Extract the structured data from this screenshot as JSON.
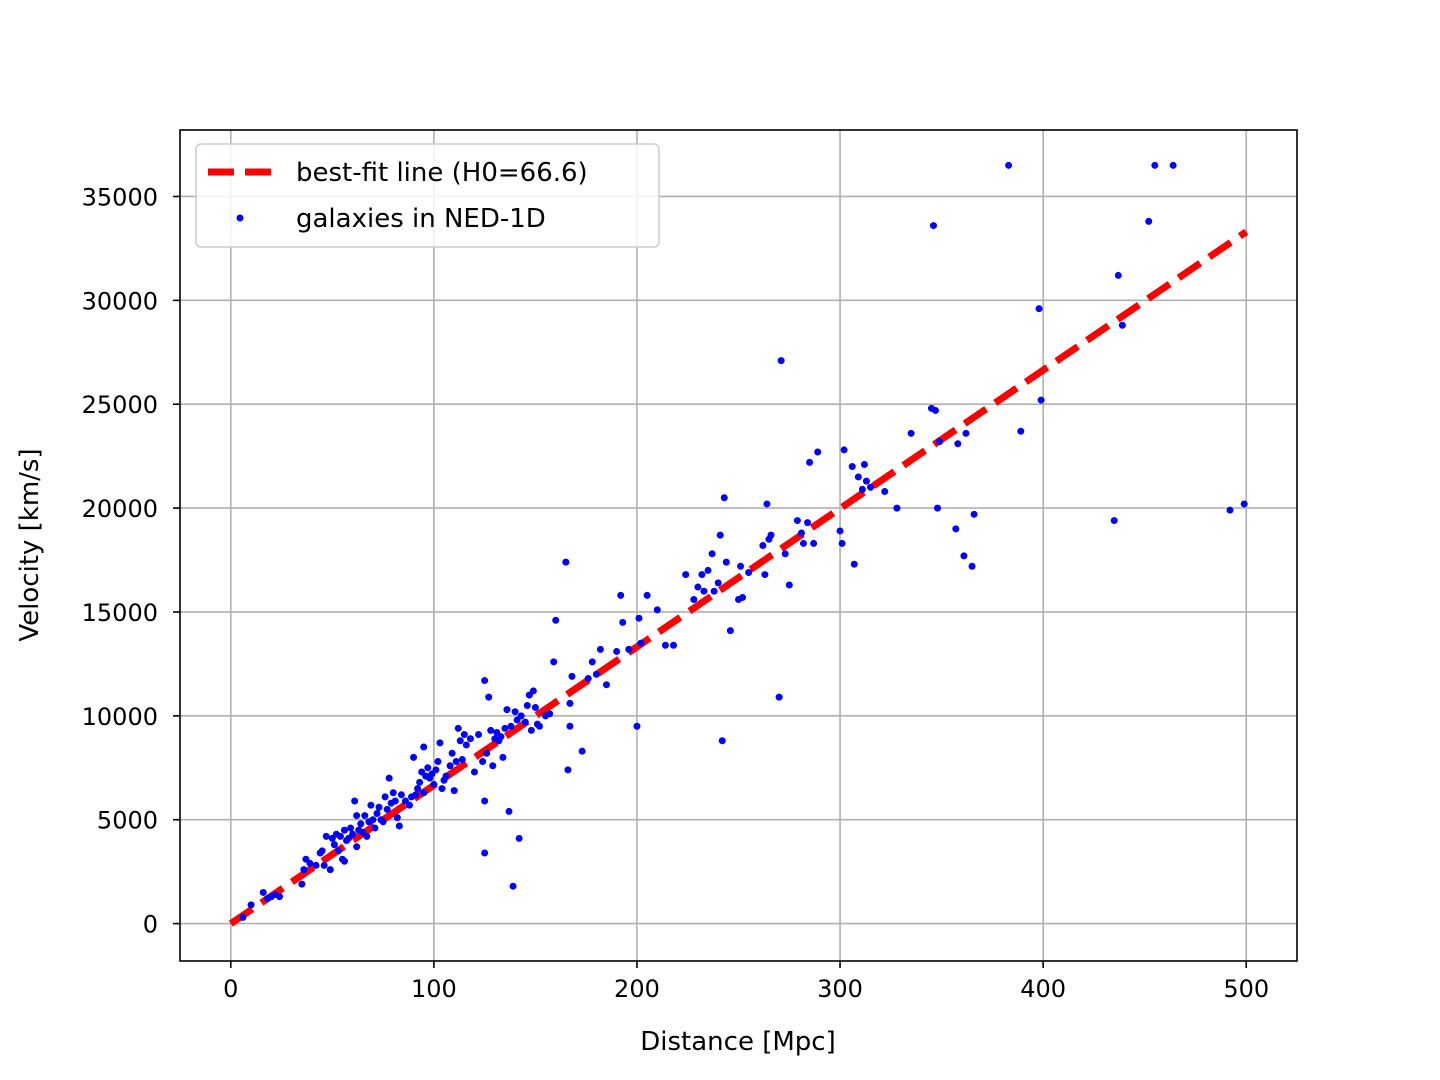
{
  "chart_data": {
    "type": "scatter",
    "title": "",
    "xlabel": "Distance [Mpc]",
    "ylabel": "Velocity [km/s]",
    "xlim": [
      -25,
      525
    ],
    "ylim": [
      -1800,
      38200
    ],
    "xticks": [
      0,
      100,
      200,
      300,
      400,
      500
    ],
    "yticks": [
      0,
      5000,
      10000,
      15000,
      20000,
      25000,
      30000,
      35000
    ],
    "grid": true,
    "legend_position": "top-left",
    "colors": {
      "fit_line": "#ff0000",
      "points": "#0000ff",
      "grid": "#b0b0b0"
    },
    "series": [
      {
        "name": "best-fit line (H0=66.6)",
        "kind": "line",
        "style": "dashed",
        "x": [
          0,
          500
        ],
        "y": [
          0,
          33300
        ]
      },
      {
        "name": "galaxies in NED-1D",
        "kind": "scatter",
        "points": [
          [
            6,
            300
          ],
          [
            10,
            900
          ],
          [
            16,
            1500
          ],
          [
            18,
            1200
          ],
          [
            20,
            1300
          ],
          [
            22,
            1400
          ],
          [
            24,
            1300
          ],
          [
            35,
            1900
          ],
          [
            36,
            2600
          ],
          [
            37,
            3100
          ],
          [
            39,
            2900
          ],
          [
            42,
            2800
          ],
          [
            44,
            3400
          ],
          [
            45,
            3500
          ],
          [
            46,
            2800
          ],
          [
            47,
            4200
          ],
          [
            49,
            2600
          ],
          [
            50,
            4100
          ],
          [
            51,
            3800
          ],
          [
            52,
            4300
          ],
          [
            53,
            3500
          ],
          [
            54,
            4200
          ],
          [
            55,
            3100
          ],
          [
            56,
            3000
          ],
          [
            56,
            4500
          ],
          [
            57,
            4000
          ],
          [
            58,
            4100
          ],
          [
            59,
            4600
          ],
          [
            60,
            4300
          ],
          [
            61,
            5900
          ],
          [
            62,
            3700
          ],
          [
            62,
            5200
          ],
          [
            63,
            4500
          ],
          [
            64,
            4800
          ],
          [
            65,
            4400
          ],
          [
            66,
            5200
          ],
          [
            67,
            4200
          ],
          [
            68,
            4900
          ],
          [
            69,
            5700
          ],
          [
            70,
            5000
          ],
          [
            71,
            4600
          ],
          [
            72,
            5300
          ],
          [
            73,
            5600
          ],
          [
            74,
            5000
          ],
          [
            75,
            4900
          ],
          [
            76,
            6100
          ],
          [
            77,
            5500
          ],
          [
            78,
            7000
          ],
          [
            79,
            5800
          ],
          [
            80,
            6300
          ],
          [
            81,
            5900
          ],
          [
            82,
            5100
          ],
          [
            83,
            4700
          ],
          [
            84,
            6200
          ],
          [
            86,
            5900
          ],
          [
            88,
            5700
          ],
          [
            89,
            6100
          ],
          [
            90,
            8000
          ],
          [
            91,
            6200
          ],
          [
            92,
            6500
          ],
          [
            93,
            6800
          ],
          [
            94,
            7300
          ],
          [
            95,
            8500
          ],
          [
            95,
            6300
          ],
          [
            96,
            7100
          ],
          [
            97,
            7500
          ],
          [
            98,
            7000
          ],
          [
            99,
            7200
          ],
          [
            100,
            6700
          ],
          [
            101,
            7400
          ],
          [
            102,
            7800
          ],
          [
            103,
            8700
          ],
          [
            104,
            6500
          ],
          [
            105,
            6900
          ],
          [
            106,
            7100
          ],
          [
            108,
            7600
          ],
          [
            109,
            8200
          ],
          [
            110,
            6400
          ],
          [
            111,
            7800
          ],
          [
            112,
            9400
          ],
          [
            113,
            8800
          ],
          [
            114,
            7900
          ],
          [
            115,
            9100
          ],
          [
            116,
            8600
          ],
          [
            118,
            8900
          ],
          [
            120,
            7300
          ],
          [
            122,
            9100
          ],
          [
            124,
            7800
          ],
          [
            125,
            11700
          ],
          [
            125,
            5900
          ],
          [
            125,
            3400
          ],
          [
            126,
            8200
          ],
          [
            127,
            10900
          ],
          [
            128,
            9300
          ],
          [
            129,
            7600
          ],
          [
            130,
            8900
          ],
          [
            131,
            9200
          ],
          [
            132,
            8800
          ],
          [
            133,
            9000
          ],
          [
            134,
            8000
          ],
          [
            135,
            9400
          ],
          [
            136,
            10300
          ],
          [
            137,
            5400
          ],
          [
            138,
            9500
          ],
          [
            139,
            1800
          ],
          [
            140,
            10200
          ],
          [
            141,
            9800
          ],
          [
            142,
            4100
          ],
          [
            143,
            10000
          ],
          [
            145,
            9700
          ],
          [
            146,
            10500
          ],
          [
            147,
            11000
          ],
          [
            148,
            9300
          ],
          [
            149,
            11200
          ],
          [
            150,
            10400
          ],
          [
            151,
            9600
          ],
          [
            152,
            9500
          ],
          [
            155,
            10000
          ],
          [
            157,
            10100
          ],
          [
            159,
            12600
          ],
          [
            160,
            14600
          ],
          [
            165,
            17400
          ],
          [
            166,
            7400
          ],
          [
            167,
            9500
          ],
          [
            167,
            10600
          ],
          [
            168,
            11900
          ],
          [
            173,
            8300
          ],
          [
            176,
            11800
          ],
          [
            178,
            12600
          ],
          [
            180,
            12000
          ],
          [
            182,
            13200
          ],
          [
            185,
            11500
          ],
          [
            190,
            13100
          ],
          [
            192,
            15800
          ],
          [
            193,
            14500
          ],
          [
            196,
            13200
          ],
          [
            200,
            9500
          ],
          [
            201,
            14700
          ],
          [
            202,
            13500
          ],
          [
            205,
            15800
          ],
          [
            210,
            15100
          ],
          [
            214,
            13400
          ],
          [
            218,
            13400
          ],
          [
            224,
            16800
          ],
          [
            228,
            15600
          ],
          [
            230,
            16200
          ],
          [
            232,
            16800
          ],
          [
            233,
            16000
          ],
          [
            235,
            17000
          ],
          [
            237,
            17800
          ],
          [
            238,
            16000
          ],
          [
            240,
            16400
          ],
          [
            241,
            18700
          ],
          [
            242,
            8800
          ],
          [
            243,
            20500
          ],
          [
            244,
            17400
          ],
          [
            246,
            14100
          ],
          [
            250,
            15600
          ],
          [
            251,
            17200
          ],
          [
            252,
            15700
          ],
          [
            255,
            16900
          ],
          [
            262,
            18200
          ],
          [
            263,
            16800
          ],
          [
            264,
            20200
          ],
          [
            265,
            18500
          ],
          [
            266,
            18700
          ],
          [
            270,
            10900
          ],
          [
            271,
            27100
          ],
          [
            273,
            17800
          ],
          [
            275,
            16300
          ],
          [
            279,
            19400
          ],
          [
            281,
            18800
          ],
          [
            282,
            18300
          ],
          [
            284,
            19300
          ],
          [
            285,
            22200
          ],
          [
            287,
            18300
          ],
          [
            289,
            22700
          ],
          [
            300,
            18900
          ],
          [
            301,
            18300
          ],
          [
            302,
            22800
          ],
          [
            306,
            22000
          ],
          [
            307,
            17300
          ],
          [
            309,
            21500
          ],
          [
            311,
            20900
          ],
          [
            312,
            22100
          ],
          [
            313,
            21300
          ],
          [
            315,
            21000
          ],
          [
            322,
            20800
          ],
          [
            328,
            20000
          ],
          [
            335,
            23600
          ],
          [
            345,
            24800
          ],
          [
            346,
            33600
          ],
          [
            347,
            24700
          ],
          [
            348,
            20000
          ],
          [
            349,
            23200
          ],
          [
            357,
            19000
          ],
          [
            358,
            23100
          ],
          [
            361,
            17700
          ],
          [
            362,
            23600
          ],
          [
            365,
            17200
          ],
          [
            366,
            19700
          ],
          [
            383,
            36500
          ],
          [
            389,
            23700
          ],
          [
            398,
            29600
          ],
          [
            399,
            25200
          ],
          [
            435,
            19400
          ],
          [
            437,
            31200
          ],
          [
            439,
            28800
          ],
          [
            452,
            33800
          ],
          [
            455,
            36500
          ],
          [
            464,
            36500
          ],
          [
            492,
            19900
          ],
          [
            499,
            20200
          ]
        ]
      }
    ]
  }
}
